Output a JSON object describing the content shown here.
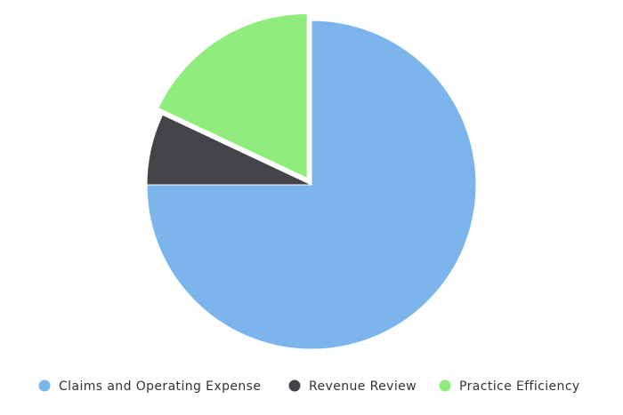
{
  "chart_data": {
    "type": "pie",
    "title": "",
    "slices": [
      {
        "name": "Claims and Operating Expense",
        "value": 75,
        "color": "#7cb5ec"
      },
      {
        "name": "Revenue Review",
        "value": 7,
        "color": "#434348"
      },
      {
        "name": "Practice Efficiency",
        "value": 18,
        "color": "#90ed7d"
      }
    ],
    "legend_position": "bottom",
    "exploded_slice": "Practice Efficiency"
  }
}
